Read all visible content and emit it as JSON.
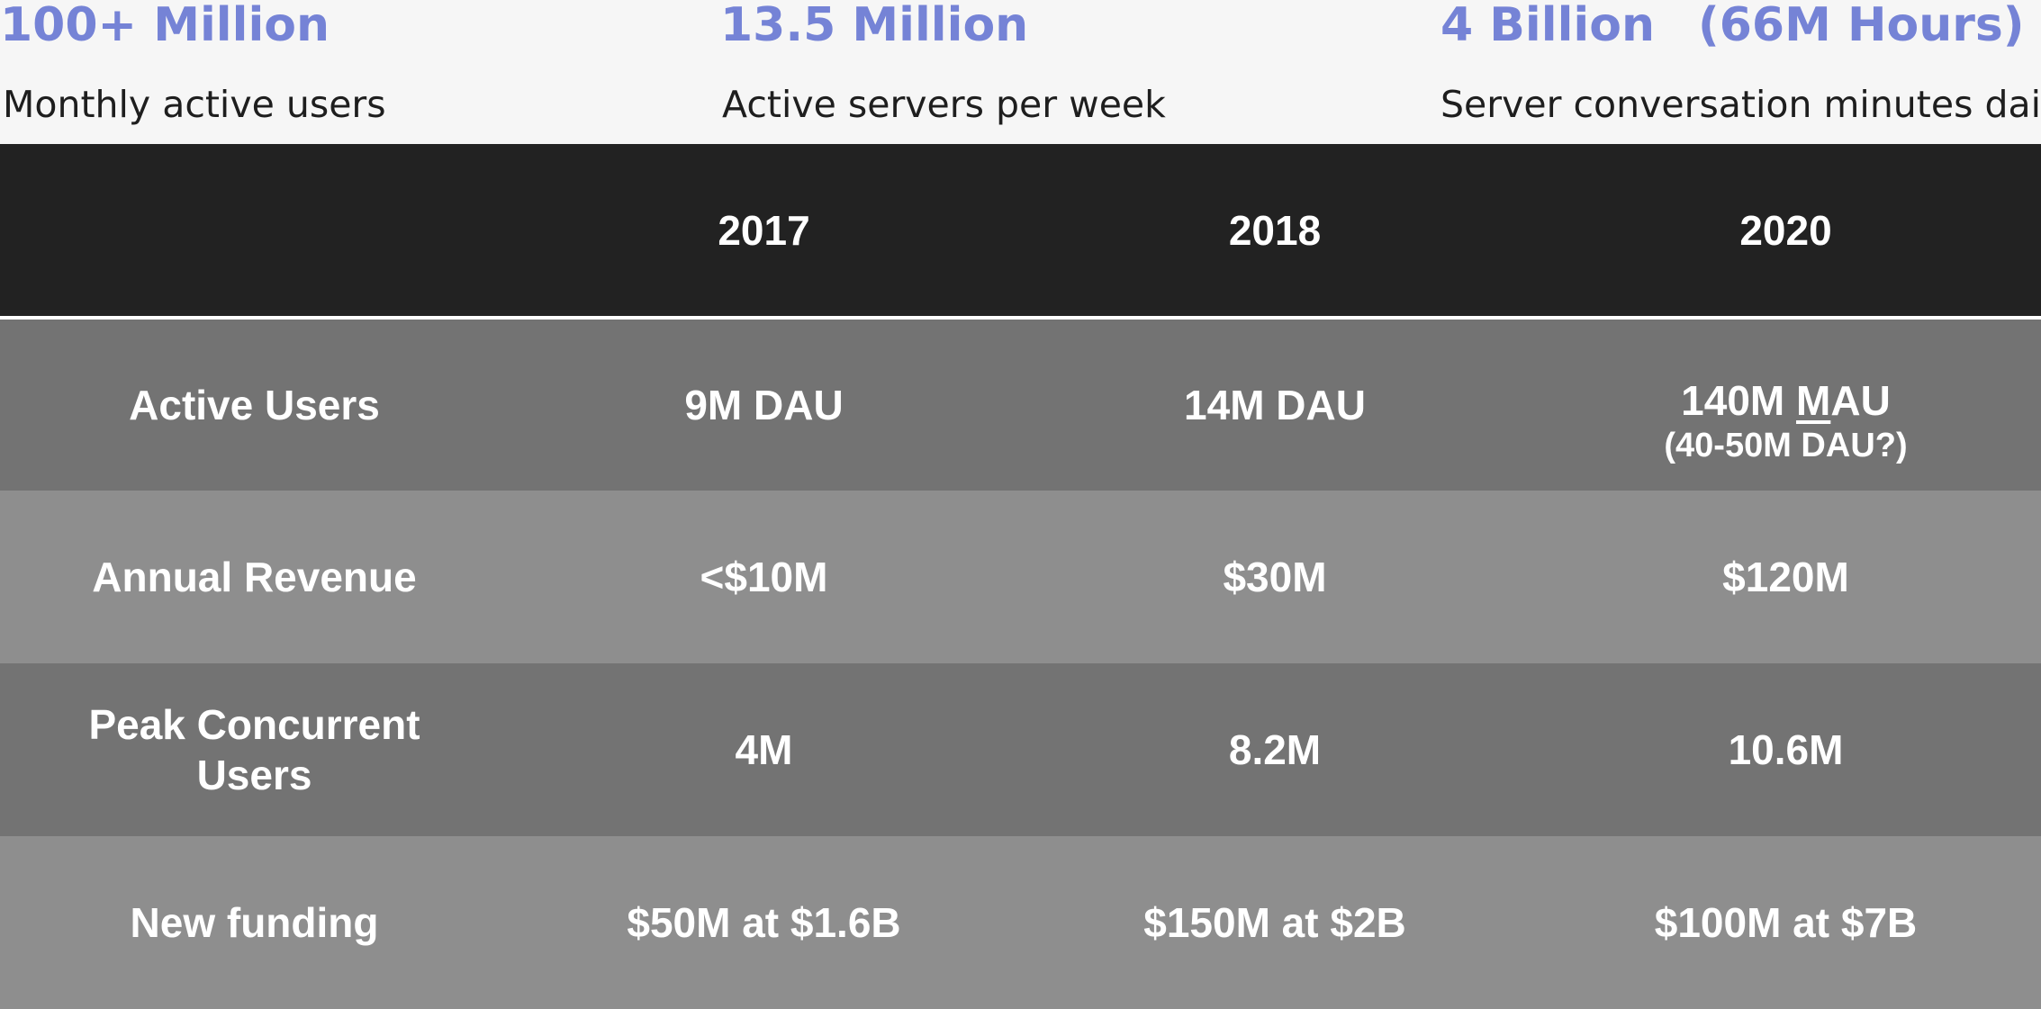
{
  "stats": [
    {
      "value": "100+ Million",
      "extra": "",
      "label": "Monthly active users"
    },
    {
      "value": "13.5 Million",
      "extra": "",
      "label": "Active servers per week"
    },
    {
      "value": "4 Billion",
      "extra": "(66M Hours)",
      "label": "Server conversation minutes daily"
    }
  ],
  "table": {
    "header": [
      "",
      "2017",
      "2018",
      "2020"
    ],
    "rows": [
      {
        "label": "Active Users",
        "values": [
          "9M DAU",
          "14M DAU"
        ],
        "last_prefix": "140M ",
        "last_underlined": "M",
        "last_suffix": "AU",
        "last_sub": "(40-50M DAU?)"
      },
      {
        "label": "Annual Revenue",
        "values": [
          "<$10M",
          "$30M",
          "$120M"
        ]
      },
      {
        "label": "Peak Concurrent Users",
        "values": [
          "4M",
          "8.2M",
          "10.6M"
        ]
      },
      {
        "label": "New funding",
        "values": [
          "$50M at $1.6B",
          "$150M at $2B",
          "$100M at $7B"
        ]
      }
    ]
  },
  "colors": {
    "accent": "#7583d6",
    "header_bg": "#222222",
    "row_dark": "#737373",
    "row_light": "#8e8e8e"
  }
}
